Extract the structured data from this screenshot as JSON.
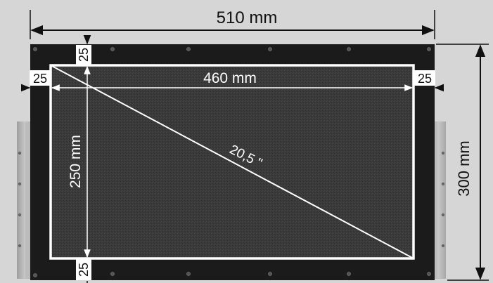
{
  "dimensions": {
    "total_width": "510 mm",
    "active_width": "460 mm",
    "active_height": "250 mm",
    "total_height": "300 mm",
    "margin_top": "25",
    "margin_bottom": "25",
    "margin_left": "25",
    "margin_right": "25",
    "diagonal": "20,5 \""
  },
  "colors": {
    "background": "#d6d6d6",
    "frame": "#1b1b1b",
    "panel": "#3a3a3a",
    "screen_border": "#ffffff",
    "bracket": "#bdbdbd",
    "dimension_line": "#111111"
  }
}
